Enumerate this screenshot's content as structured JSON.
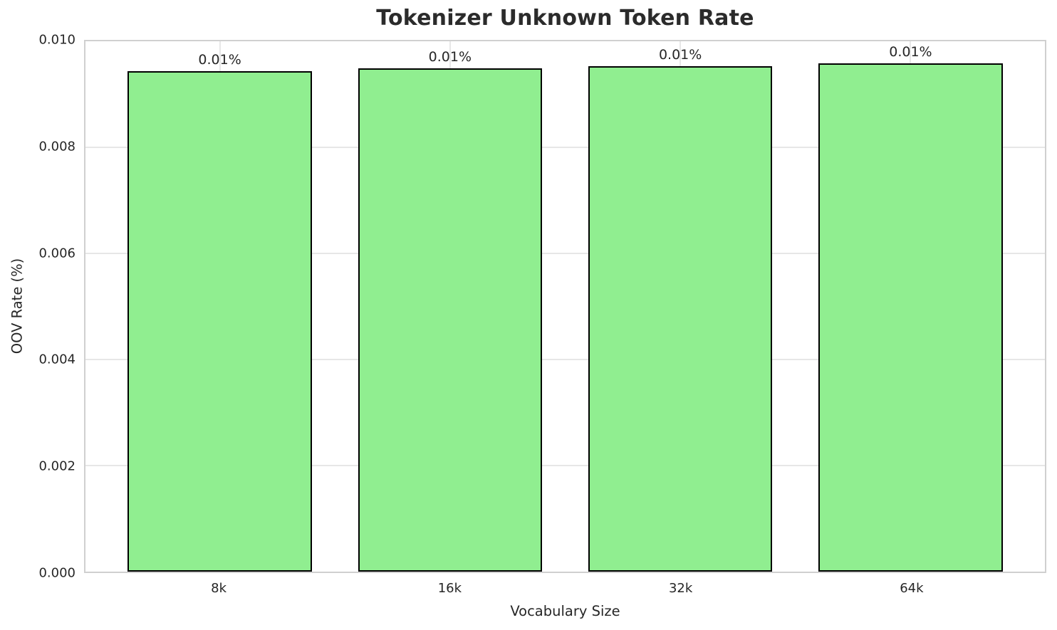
{
  "chart_data": {
    "type": "bar",
    "title": "Tokenizer Unknown Token Rate",
    "xlabel": "Vocabulary Size",
    "ylabel": "OOV Rate (%)",
    "categories": [
      "8k",
      "16k",
      "32k",
      "64k"
    ],
    "values": [
      0.00943,
      0.00949,
      0.00953,
      0.00958
    ],
    "bar_labels": [
      "0.01%",
      "0.01%",
      "0.01%",
      "0.01%"
    ],
    "ylim": [
      0.0,
      0.01
    ],
    "ytick_values": [
      0.0,
      0.002,
      0.004,
      0.006,
      0.008,
      0.01
    ],
    "ytick_labels": [
      "0.000",
      "0.002",
      "0.004",
      "0.006",
      "0.008",
      "0.010"
    ],
    "grid": true,
    "legend": "none",
    "colors": {
      "bar_fill": "#90EE90",
      "bar_edge": "#000000",
      "gridline": "#e7e7e7",
      "spine": "#d0d0d0",
      "text": "#262626"
    }
  }
}
